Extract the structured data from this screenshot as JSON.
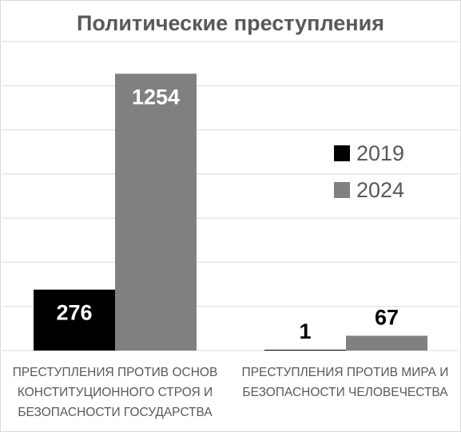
{
  "chart_data": {
    "type": "bar",
    "title": "Политические преступления",
    "categories": [
      "ПРЕСТУПЛЕНИЯ ПРОТИВ ОСНОВ КОНСТИТУЦИОННОГО СТРОЯ И БЕЗОПАСНОСТИ ГОСУДАРСТВА",
      "ПРЕСТУПЛЕНИЯ ПРОТИВ МИРА И БЕЗОПАСНОСТИ ЧЕЛОВЕЧЕСТВА"
    ],
    "series": [
      {
        "name": "2019",
        "values": [
          276,
          1
        ],
        "color": "#000000",
        "label_color": "#ffffff"
      },
      {
        "name": "2024",
        "values": [
          1254,
          67
        ],
        "color": "#808080",
        "label_color": "#ffffff"
      }
    ],
    "ylim": [
      0,
      1400
    ],
    "grid": true,
    "data_labels": true,
    "legend_position": "right"
  },
  "colors": {
    "title": "#595959",
    "grid": "#d9d9d9",
    "axis_text": "#595959"
  }
}
